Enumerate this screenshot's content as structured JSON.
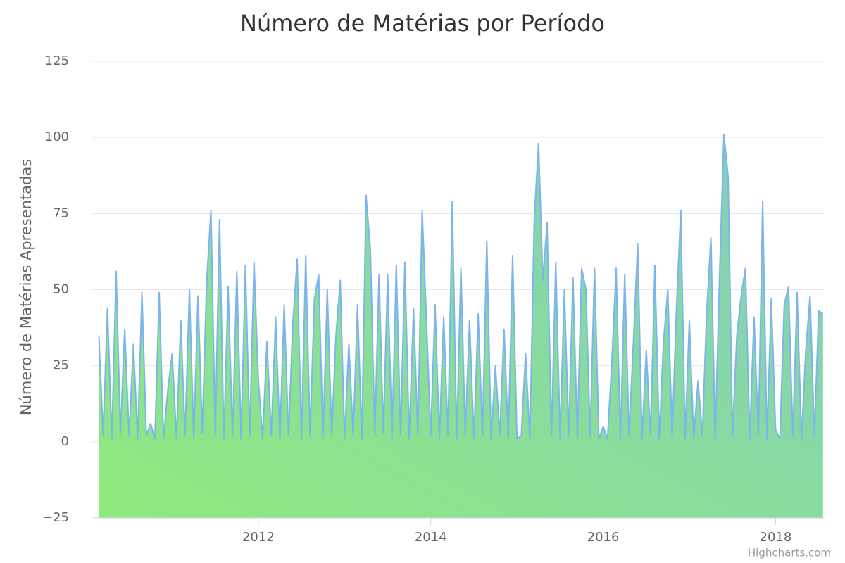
{
  "chart_data": {
    "type": "area",
    "title": "Número de Matérias por Período",
    "y_label": "Número de Matérias Apresentadas",
    "credits": "Highcharts.com",
    "xlim": [
      2010.065,
      2018.56
    ],
    "xticks": [
      2012,
      2014,
      2016,
      2018
    ],
    "ylim": [
      -25,
      125
    ],
    "yticks": [
      {
        "value": -25,
        "label": "−25"
      },
      0,
      25,
      50,
      75,
      100,
      125
    ],
    "grid": true,
    "fill_colors": [
      "#8eea7c",
      "#84ccc2"
    ],
    "series": [
      {
        "color": "#7cb5ec",
        "x": [
          2010.15,
          2010.2,
          2010.25,
          2010.3,
          2010.35,
          2010.4,
          2010.45,
          2010.5,
          2010.55,
          2010.6,
          2010.65,
          2010.7,
          2010.75,
          2010.8,
          2010.85,
          2010.9,
          2010.95,
          2011.0,
          2011.05,
          2011.1,
          2011.15,
          2011.2,
          2011.25,
          2011.3,
          2011.35,
          2011.4,
          2011.45,
          2011.5,
          2011.55,
          2011.6,
          2011.65,
          2011.7,
          2011.75,
          2011.8,
          2011.85,
          2011.9,
          2011.95,
          2012.0,
          2012.05,
          2012.1,
          2012.15,
          2012.2,
          2012.25,
          2012.3,
          2012.35,
          2012.4,
          2012.45,
          2012.5,
          2012.55,
          2012.6,
          2012.65,
          2012.7,
          2012.75,
          2012.8,
          2012.85,
          2012.9,
          2012.95,
          2013.0,
          2013.05,
          2013.1,
          2013.15,
          2013.2,
          2013.25,
          2013.3,
          2013.35,
          2013.4,
          2013.45,
          2013.5,
          2013.55,
          2013.6,
          2013.65,
          2013.7,
          2013.75,
          2013.8,
          2013.85,
          2013.9,
          2013.95,
          2014.0,
          2014.05,
          2014.1,
          2014.15,
          2014.2,
          2014.25,
          2014.3,
          2014.35,
          2014.4,
          2014.45,
          2014.5,
          2014.55,
          2014.6,
          2014.65,
          2014.7,
          2014.75,
          2014.8,
          2014.85,
          2014.9,
          2014.95,
          2015.0,
          2015.05,
          2015.1,
          2015.15,
          2015.2,
          2015.25,
          2015.3,
          2015.35,
          2015.4,
          2015.45,
          2015.5,
          2015.55,
          2015.6,
          2015.65,
          2015.7,
          2015.75,
          2015.8,
          2015.85,
          2015.9,
          2015.95,
          2016.0,
          2016.05,
          2016.1,
          2016.15,
          2016.2,
          2016.25,
          2016.3,
          2016.35,
          2016.4,
          2016.45,
          2016.5,
          2016.55,
          2016.6,
          2016.65,
          2016.7,
          2016.75,
          2016.8,
          2016.85,
          2016.9,
          2016.95,
          2017.0,
          2017.05,
          2017.1,
          2017.15,
          2017.2,
          2017.25,
          2017.3,
          2017.35,
          2017.4,
          2017.45,
          2017.5,
          2017.55,
          2017.6,
          2017.65,
          2017.7,
          2017.75,
          2017.8,
          2017.85,
          2017.9,
          2017.95,
          2018.0,
          2018.05,
          2018.1,
          2018.15,
          2018.2,
          2018.25,
          2018.3,
          2018.35,
          2018.4,
          2018.45,
          2018.5,
          2018.55
        ],
        "values": [
          35,
          2,
          44,
          1,
          56,
          3,
          37,
          2,
          32,
          1,
          49,
          2,
          6,
          1,
          49,
          1,
          17,
          29,
          1,
          40,
          2,
          50,
          1,
          48,
          3,
          52,
          76,
          2,
          73,
          1,
          51,
          2,
          56,
          1,
          58,
          2,
          59,
          20,
          1,
          33,
          2,
          41,
          1,
          45,
          2,
          39,
          60,
          1,
          61,
          2,
          47,
          55,
          1,
          50,
          2,
          35,
          53,
          1,
          32,
          2,
          45,
          1,
          81,
          63,
          2,
          55,
          3,
          55,
          1,
          58,
          2,
          59,
          1,
          44,
          2,
          76,
          40,
          2,
          45,
          1,
          41,
          2,
          79,
          1,
          57,
          2,
          40,
          1,
          42,
          2,
          66,
          1,
          25,
          2,
          37,
          1,
          61,
          1,
          2,
          29,
          1,
          73,
          98,
          53,
          72,
          2,
          59,
          1,
          50,
          2,
          54,
          1,
          57,
          50,
          2,
          57,
          1,
          5,
          1,
          26,
          57,
          1,
          55,
          2,
          32,
          65,
          1,
          30,
          2,
          58,
          1,
          33,
          50,
          2,
          44,
          76,
          1,
          40,
          1,
          20,
          2,
          42,
          67,
          1,
          55,
          101,
          87,
          2,
          35,
          48,
          57,
          1,
          41,
          2,
          79,
          1,
          47,
          4,
          1,
          45,
          51,
          2,
          49,
          1,
          30,
          48,
          2,
          43,
          42
        ]
      }
    ]
  }
}
